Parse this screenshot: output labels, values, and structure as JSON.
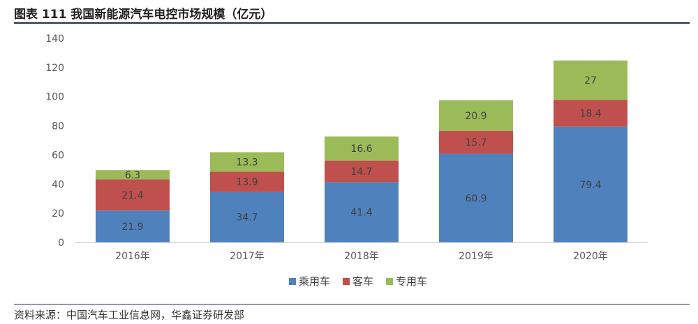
{
  "title": "图表 111 我国新能源汽车电控市场规模（亿元）",
  "source": "资料来源：中国汽车工业信息网，华鑫证券研发部",
  "chart_data": {
    "type": "bar",
    "stacked": true,
    "categories": [
      "2016年",
      "2017年",
      "2018年",
      "2019年",
      "2020年"
    ],
    "series": [
      {
        "name": "乘用车",
        "values": [
          21.9,
          34.7,
          41.4,
          60.9,
          79.4
        ],
        "color": "#4f81bd"
      },
      {
        "name": "客车",
        "values": [
          21.4,
          13.9,
          14.7,
          15.7,
          18.4
        ],
        "color": "#c0504d"
      },
      {
        "name": "专用车",
        "values": [
          6.3,
          13.3,
          16.6,
          20.9,
          27
        ],
        "color": "#9bbb59"
      }
    ],
    "ylim": [
      0,
      140
    ],
    "yticks": [
      0,
      20,
      40,
      60,
      80,
      100,
      120,
      140
    ],
    "grid": false,
    "legend_position": "bottom"
  }
}
